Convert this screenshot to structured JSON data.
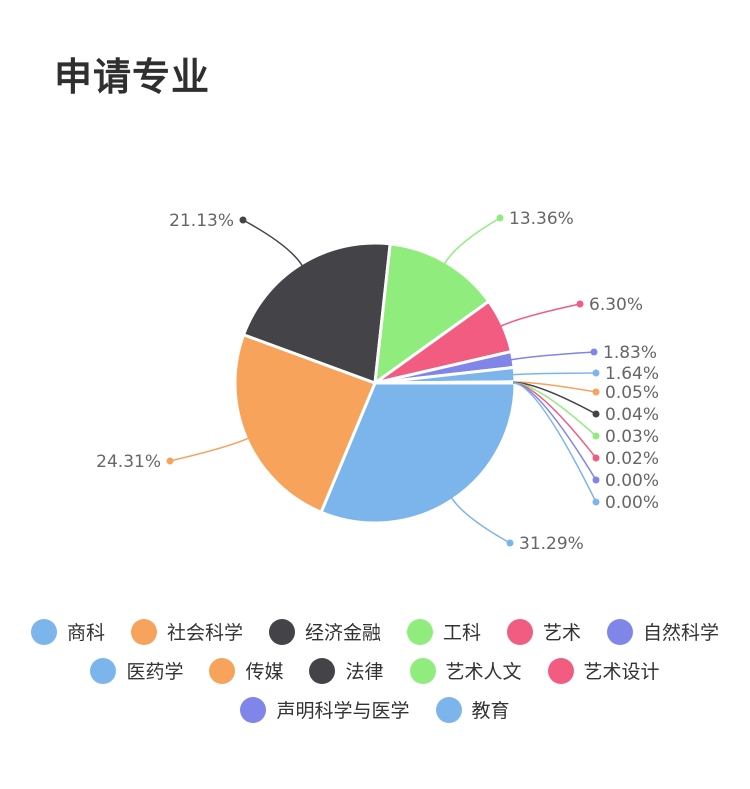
{
  "title": "申请专业",
  "chart_data": {
    "type": "pie",
    "slices": [
      {
        "name": "商科",
        "value": 31.29,
        "label": "31.29%",
        "color": "#7cb5ec"
      },
      {
        "name": "社会科学",
        "value": 24.31,
        "label": "24.31%",
        "color": "#f7a35c"
      },
      {
        "name": "经济金融",
        "value": 21.13,
        "label": "21.13%",
        "color": "#434348"
      },
      {
        "name": "工科",
        "value": 13.36,
        "label": "13.36%",
        "color": "#90ed7d"
      },
      {
        "name": "艺术",
        "value": 6.3,
        "label": "6.30%",
        "color": "#f15c80"
      },
      {
        "name": "自然科学",
        "value": 1.83,
        "label": "1.83%",
        "color": "#8085e9"
      },
      {
        "name": "医药学",
        "value": 1.64,
        "label": "1.64%",
        "color": "#7cb5ec"
      },
      {
        "name": "传媒",
        "value": 0.05,
        "label": "0.05%",
        "color": "#f7a35c"
      },
      {
        "name": "法律",
        "value": 0.04,
        "label": "0.04%",
        "color": "#434348"
      },
      {
        "name": "艺术人文",
        "value": 0.03,
        "label": "0.03%",
        "color": "#90ed7d"
      },
      {
        "name": "艺术设计",
        "value": 0.02,
        "label": "0.02%",
        "color": "#f15c80"
      },
      {
        "name": "声明科学与医学",
        "value": 0.0,
        "label": "0.00%",
        "color": "#8085e9"
      },
      {
        "name": "教育",
        "value": 0.0,
        "label": "0.00%",
        "color": "#7cb5ec"
      }
    ],
    "legend_position": "bottom"
  }
}
